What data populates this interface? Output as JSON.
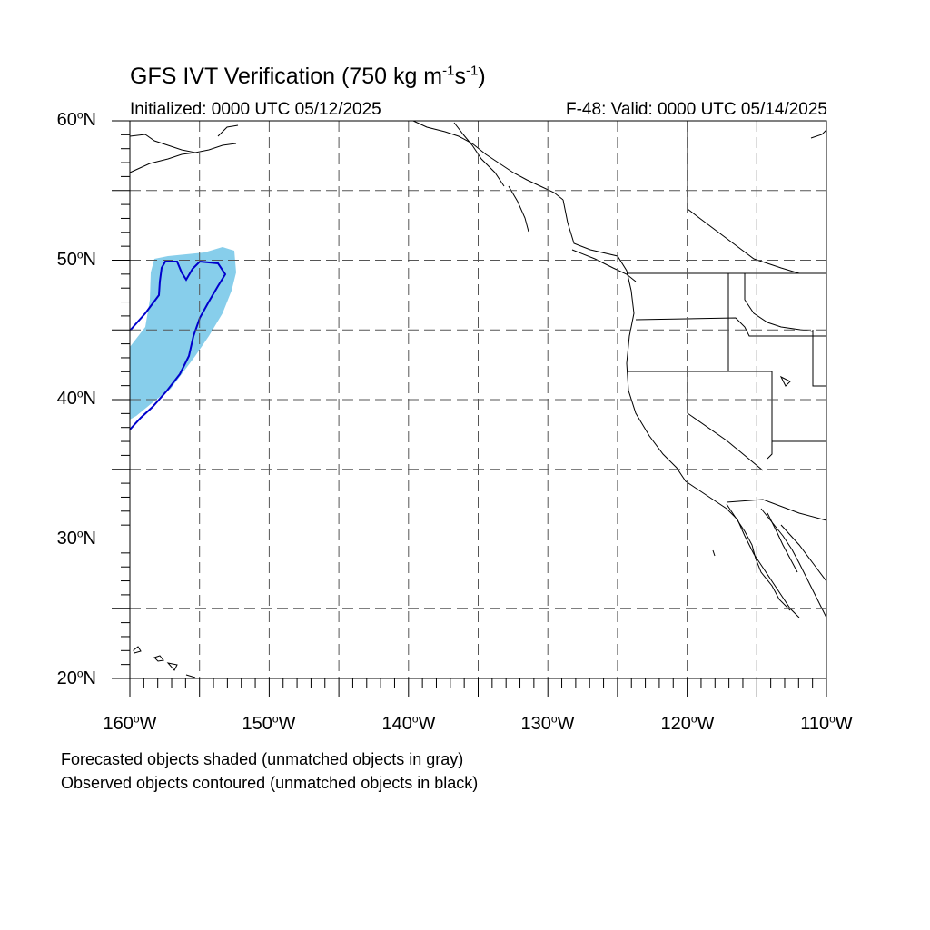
{
  "title": {
    "text_before": "GFS IVT Verification (750 kg m",
    "exp1": "-1",
    "mid": "s",
    "exp2": "-1",
    "text_after": ")"
  },
  "subtitle_left": "Initialized: 0000 UTC 05/12/2025",
  "subtitle_right": "F-48: Valid: 0000 UTC 05/14/2025",
  "map": {
    "lon_range": [
      -160,
      -110
    ],
    "lat_range": [
      20,
      60
    ],
    "grid": "dashed every 5 degrees",
    "lat_labels": [
      "60",
      "50",
      "40",
      "30",
      "20"
    ],
    "lat_suffix": "N",
    "lon_labels": [
      "160",
      "150",
      "140",
      "130",
      "120",
      "110"
    ],
    "lon_suffix": "W",
    "degree_symbol": "o",
    "forecast_object_color": "#87ceeb",
    "observed_contour_color": "#0000cc"
  },
  "notes": {
    "line1": "Forecasted objects shaded (unmatched objects in gray)",
    "line2": "Observed objects contoured (unmatched objects in black)"
  }
}
